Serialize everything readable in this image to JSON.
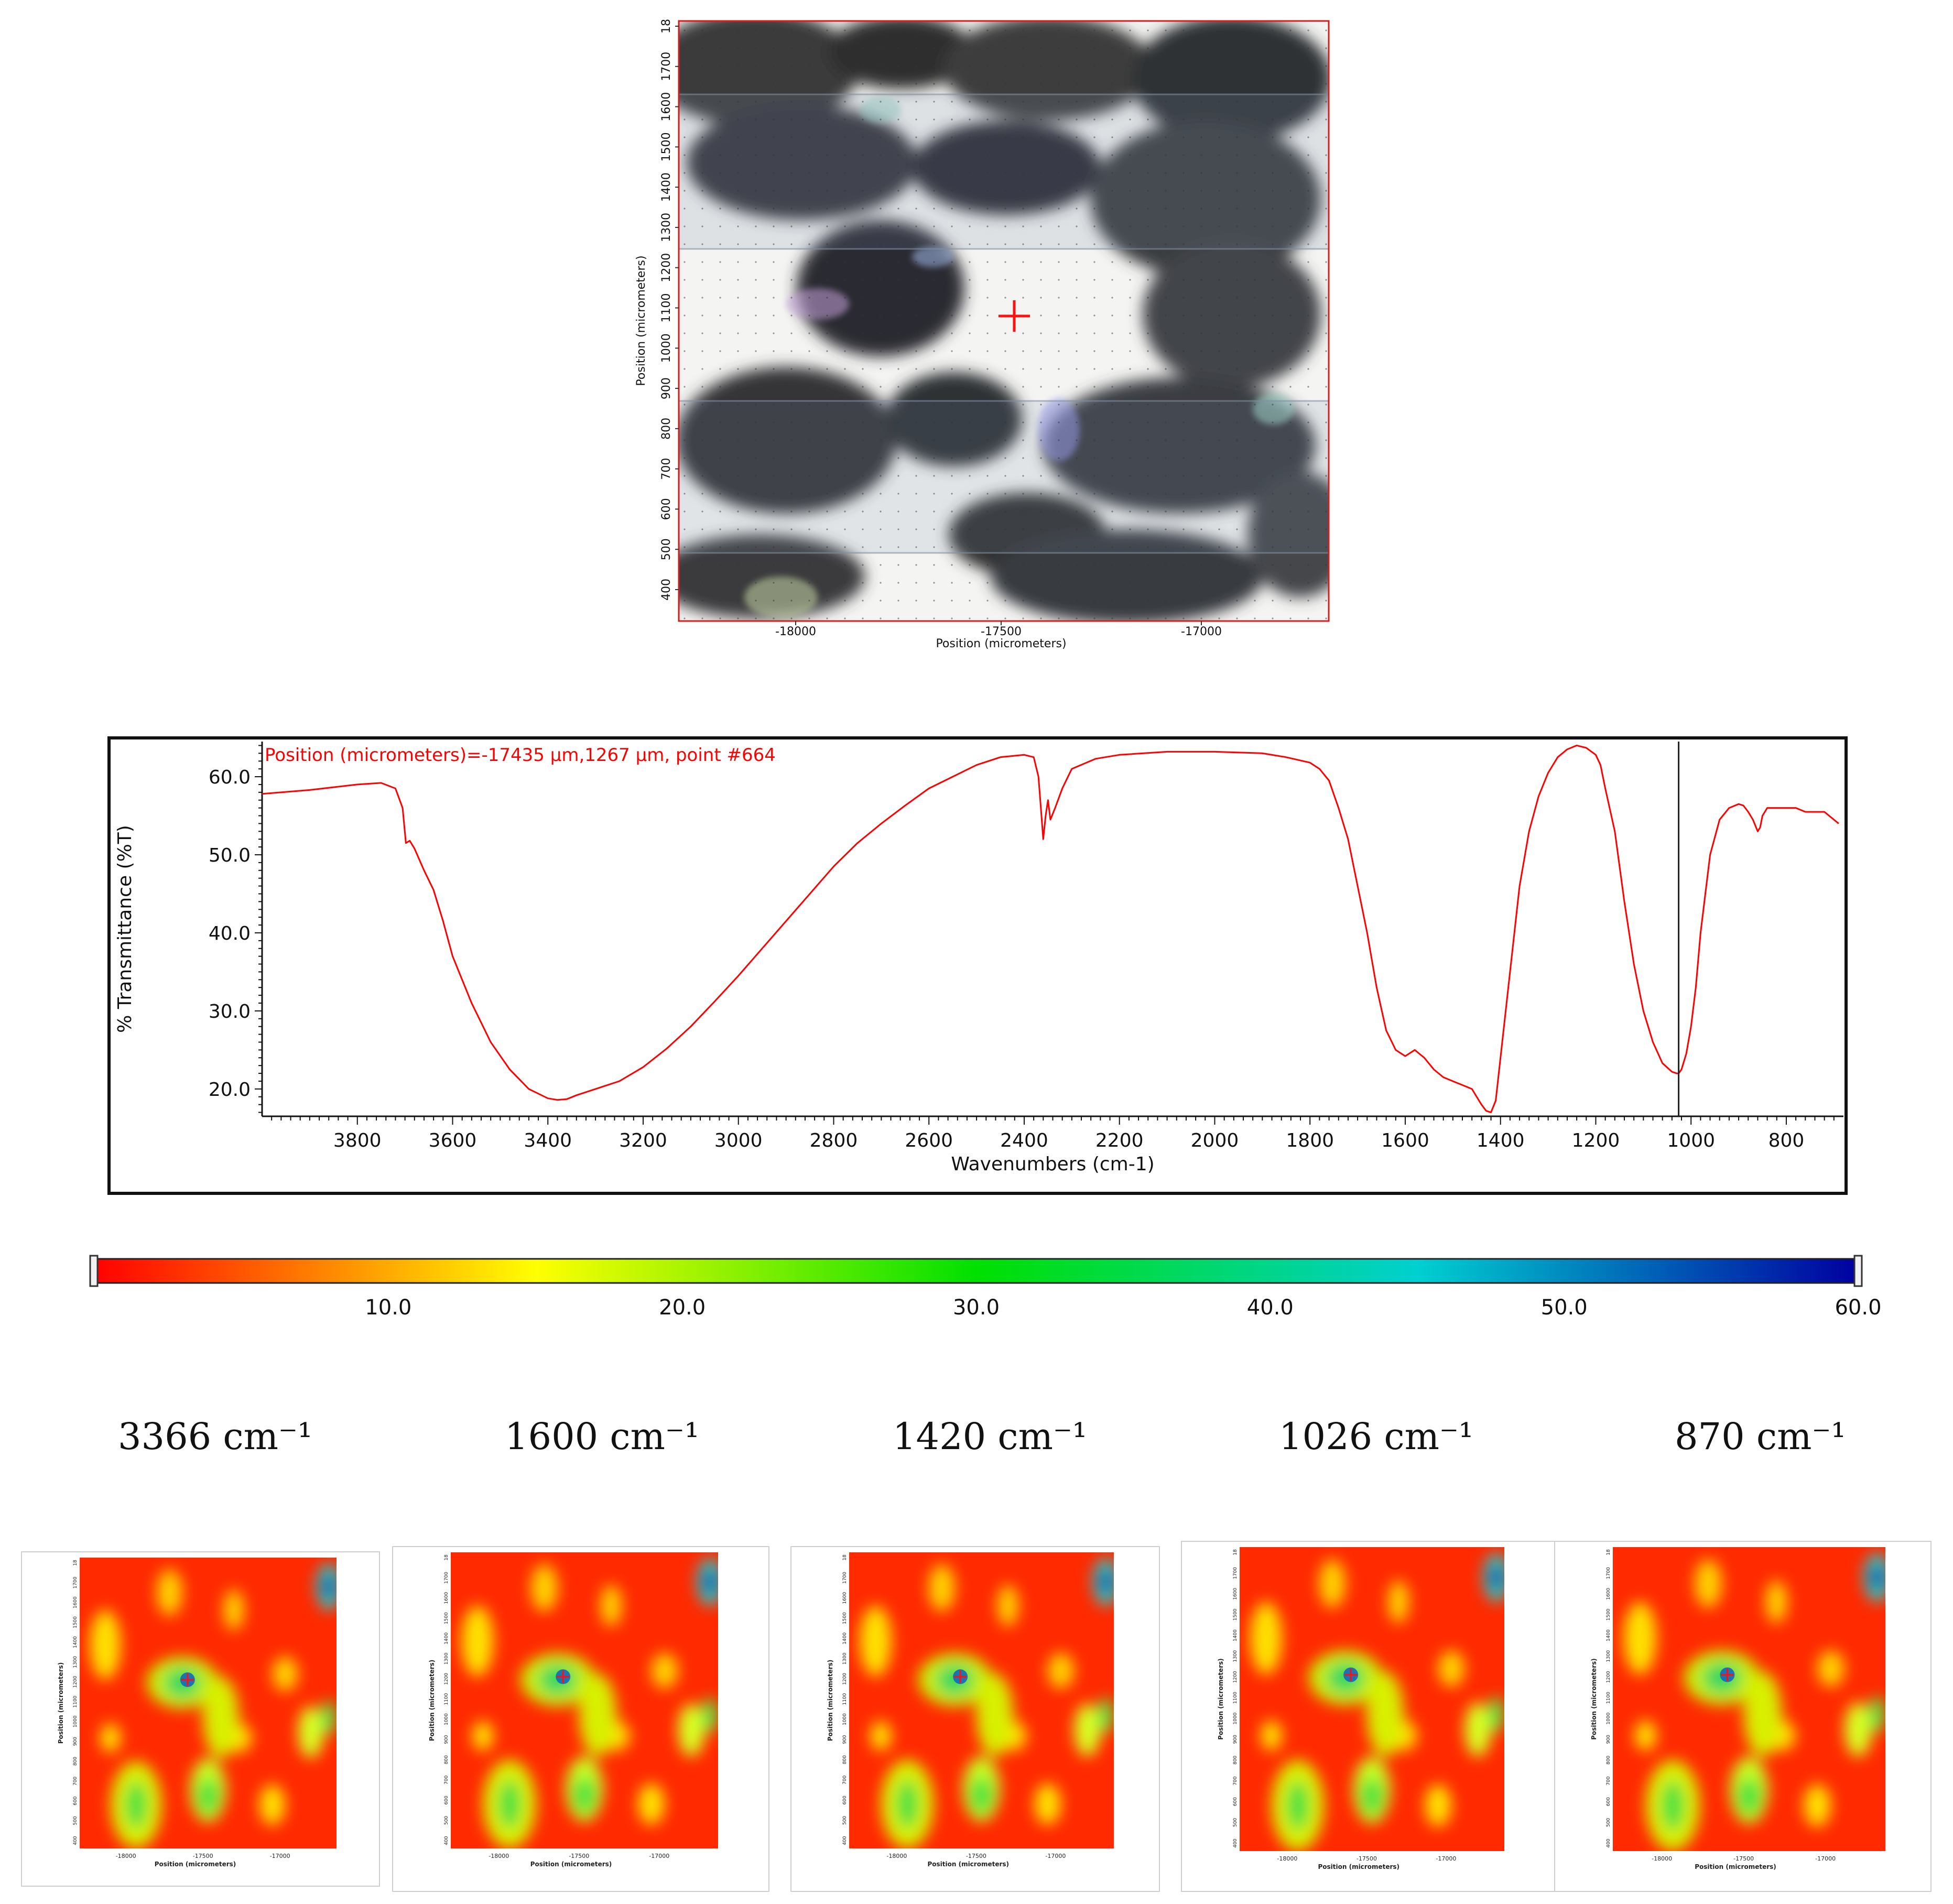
{
  "micrograph": {
    "x_axis_label": "Position (micrometers)",
    "y_axis_label": "Position (micrometers)",
    "x_ticks": [
      "-18000",
      "-17500",
      "-17000"
    ],
    "y_ticks": [
      "400",
      "500",
      "600",
      "700",
      "800",
      "900",
      "1000",
      "1100",
      "1200",
      "1300",
      "1400",
      "1500",
      "1600",
      "1700",
      "18"
    ],
    "marker": "crosshair"
  },
  "spectrum_annotation": "Position (micrometers)=-17435 µm,1267 µm, point #664",
  "colorbar": {
    "ticks": [
      "10.0",
      "20.0",
      "30.0",
      "40.0",
      "50.0",
      "60.0"
    ],
    "range": [
      0,
      60
    ],
    "colors": [
      "#ff0000",
      "#ffff00",
      "#00e000",
      "#00d0d0",
      "#0000a0"
    ]
  },
  "maps": [
    {
      "label": "3366 cm⁻¹"
    },
    {
      "label": "1600 cm⁻¹"
    },
    {
      "label": "1420 cm⁻¹"
    },
    {
      "label": "1026 cm⁻¹"
    },
    {
      "label": "870 cm⁻¹"
    }
  ],
  "map_axis": {
    "x_label": "Position (micrometers)",
    "y_label": "Position (micrometers)",
    "x_ticks": [
      "-18000",
      "-17500",
      "-17000"
    ]
  },
  "chart_data": {
    "type": "line",
    "xlabel": "Wavenumbers (cm-1)",
    "ylabel": "% Transmittance (%T)",
    "xlim": [
      4000,
      680
    ],
    "ylim": [
      16.5,
      64.5
    ],
    "x_ticks": [
      3800,
      3600,
      3400,
      3200,
      3000,
      2800,
      2600,
      2400,
      2200,
      2000,
      1800,
      1600,
      1400,
      1200,
      1000,
      800
    ],
    "y_ticks": [
      20.0,
      30.0,
      40.0,
      50.0,
      60.0
    ],
    "cursor_x": 1026,
    "line_color": "#ff0000",
    "series": [
      {
        "x": [
          4000,
          3900,
          3800,
          3750,
          3720,
          3705,
          3698,
          3690,
          3680,
          3660,
          3640,
          3620,
          3600,
          3560,
          3520,
          3480,
          3440,
          3400,
          3380,
          3360,
          3340,
          3300,
          3250,
          3200,
          3150,
          3100,
          3050,
          3000,
          2950,
          2900,
          2850,
          2800,
          2750,
          2700,
          2650,
          2600,
          2550,
          2500,
          2450,
          2400,
          2380,
          2370,
          2365,
          2360,
          2355,
          2350,
          2345,
          2335,
          2320,
          2300,
          2250,
          2200,
          2100,
          2000,
          1900,
          1850,
          1800,
          1780,
          1760,
          1740,
          1720,
          1700,
          1680,
          1660,
          1640,
          1620,
          1600,
          1580,
          1560,
          1540,
          1520,
          1500,
          1480,
          1460,
          1440,
          1430,
          1420,
          1410,
          1400,
          1380,
          1360,
          1340,
          1320,
          1300,
          1280,
          1260,
          1240,
          1220,
          1200,
          1190,
          1180,
          1160,
          1140,
          1120,
          1100,
          1080,
          1060,
          1040,
          1030,
          1026,
          1020,
          1010,
          1000,
          990,
          980,
          960,
          940,
          920,
          900,
          890,
          880,
          870,
          860,
          855,
          850,
          840,
          820,
          800,
          780,
          760,
          740,
          720,
          700,
          690
        ],
        "y": [
          57.8,
          58.3,
          59.0,
          59.2,
          58.5,
          56.0,
          51.5,
          51.8,
          50.8,
          48.0,
          45.5,
          41.5,
          37.0,
          31.0,
          26.0,
          22.5,
          20.0,
          18.8,
          18.6,
          18.7,
          19.2,
          20.0,
          21.0,
          22.8,
          25.2,
          28.0,
          31.2,
          34.5,
          38.0,
          41.5,
          45.0,
          48.5,
          51.5,
          54.0,
          56.3,
          58.5,
          60.0,
          61.5,
          62.5,
          62.8,
          62.5,
          60.0,
          56.0,
          52.0,
          55.0,
          57.0,
          54.5,
          56.0,
          58.5,
          61.0,
          62.3,
          62.8,
          63.2,
          63.2,
          63.0,
          62.5,
          61.8,
          61.0,
          59.5,
          56.0,
          52.0,
          46.0,
          40.0,
          33.0,
          27.5,
          25.0,
          24.2,
          25.0,
          24.0,
          22.5,
          21.5,
          21.0,
          20.5,
          20.0,
          18.0,
          17.2,
          17.0,
          18.5,
          24.0,
          35.0,
          46.0,
          53.0,
          57.5,
          60.5,
          62.5,
          63.5,
          64.0,
          63.7,
          62.8,
          61.5,
          58.5,
          53.0,
          44.0,
          36.0,
          30.0,
          26.0,
          23.3,
          22.2,
          22.0,
          22.0,
          22.5,
          24.5,
          28.0,
          33.0,
          40.0,
          50.0,
          54.5,
          56.0,
          56.5,
          56.3,
          55.5,
          54.5,
          53.0,
          53.5,
          55.0,
          56.0,
          56.0,
          56.0,
          56.0,
          55.5,
          55.5,
          55.5,
          54.5,
          54.0
        ]
      }
    ]
  }
}
